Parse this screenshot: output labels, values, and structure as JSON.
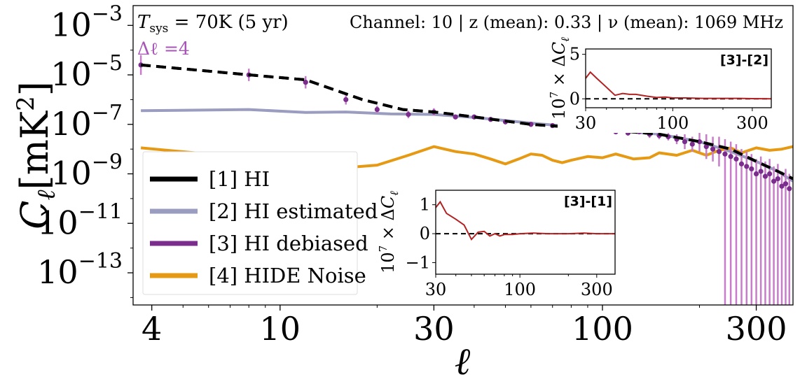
{
  "chart_data": [
    {
      "type": "line",
      "xscale": "log",
      "yscale": "log",
      "xlim": [
        3.5,
        390
      ],
      "ylim_exp": [
        -14.3,
        -2.2
      ],
      "xlabel": "ℓ",
      "ylabel": "C_ℓ [mK²]",
      "ylabel_main": "C",
      "ylabel_sub": "ℓ",
      "ylabel_unit": "[mK",
      "ylabel_pow": "2",
      "ylabel_close": "]",
      "xticks": [
        4,
        10,
        30,
        100,
        300
      ],
      "xtick_labels": [
        "4",
        "10",
        "30",
        "100",
        "300"
      ],
      "yticks_exp": [
        -3,
        -5,
        -7,
        -9,
        -11,
        -13
      ],
      "ytick_base": "10",
      "ytick_exps": [
        "−3",
        "−5",
        "−7",
        "−9",
        "−11",
        "−13"
      ],
      "annotations": {
        "tsys_main": "T",
        "tsys_sub": "sys",
        "tsys_rest": " = 70K (5 yr)",
        "delta_l": "Δℓ =4",
        "channel": "Channel: 10 | z (mean): 0.33 | ν (mean): 1069 MHz"
      },
      "legend_position": "lower-left",
      "legend": [
        {
          "label": "[1] HI",
          "color": "#000000"
        },
        {
          "label": "[2] HI estimated",
          "color": "#9a9cc0"
        },
        {
          "label": "[3] HI debiased",
          "color": "#7b2d8e"
        },
        {
          "label": "[4] HIDE Noise",
          "color": "#e69a14"
        }
      ],
      "series": [
        {
          "name": "[1] HI",
          "style": "dashed",
          "color": "#000000",
          "x": [
            3.7,
            8,
            12,
            18,
            24,
            30,
            40,
            60,
            100,
            150,
            200,
            250,
            300,
            350,
            390
          ],
          "y_exp": [
            -4.6,
            -5.0,
            -5.2,
            -6.0,
            -6.4,
            -6.5,
            -6.7,
            -7.0,
            -7.2,
            -7.4,
            -7.7,
            -8.0,
            -8.5,
            -8.9,
            -9.2
          ]
        },
        {
          "name": "[2] HI estimated",
          "style": "solid",
          "color": "#9a9cc0",
          "x": [
            3.7,
            8,
            12,
            16,
            22,
            30,
            40,
            60,
            100,
            150,
            200,
            250,
            300,
            350,
            390
          ],
          "y_exp": [
            -6.45,
            -6.4,
            -6.52,
            -6.5,
            -6.58,
            -6.6,
            -6.72,
            -6.95,
            -7.2,
            -7.4,
            -7.7,
            -8.1,
            -8.5,
            -8.9,
            -9.3
          ]
        },
        {
          "name": "[4] HIDE Noise",
          "style": "solid",
          "color": "#e69a14",
          "x": [
            3.7,
            8,
            12,
            16,
            20,
            25,
            30,
            35,
            40,
            45,
            50,
            55,
            60,
            65,
            70,
            75,
            80,
            90,
            100,
            110,
            125,
            140,
            150,
            170,
            190,
            210,
            230,
            250,
            270,
            300,
            330,
            360,
            390
          ],
          "y_exp": [
            -7.95,
            -8.35,
            -8.55,
            -8.75,
            -8.65,
            -8.25,
            -7.9,
            -8.1,
            -8.2,
            -8.4,
            -8.6,
            -8.4,
            -8.2,
            -8.25,
            -8.45,
            -8.55,
            -8.45,
            -8.3,
            -8.35,
            -8.2,
            -8.4,
            -8.35,
            -8.15,
            -8.25,
            -8.05,
            -8.25,
            -8.05,
            -7.95,
            -8.15,
            -7.95,
            -8.05,
            -8.0,
            -7.9
          ]
        }
      ],
      "points_series": {
        "name": "[3] HI debiased",
        "color": "#7b2d8e",
        "errorbar_color": "#c77dc9",
        "x": [
          3.7,
          8,
          12,
          16,
          20,
          25,
          30,
          35,
          40,
          45,
          50,
          60,
          70,
          80,
          90,
          100,
          110,
          120,
          130,
          140,
          150,
          160,
          170,
          180,
          190,
          200,
          210,
          220,
          230,
          240,
          250,
          260,
          270,
          280,
          290,
          300,
          310,
          320,
          330,
          340,
          350,
          360,
          370,
          380
        ],
        "y_exp": [
          -4.6,
          -5.0,
          -5.3,
          -6.0,
          -6.4,
          -6.6,
          -6.5,
          -6.7,
          -6.7,
          -6.8,
          -6.9,
          -7.0,
          -7.05,
          -7.1,
          -7.15,
          -7.2,
          -7.3,
          -7.35,
          -7.3,
          -7.4,
          -7.45,
          -7.5,
          -7.6,
          -7.7,
          -7.8,
          -7.7,
          -7.9,
          -8.0,
          -8.1,
          -8.2,
          -8.3,
          -8.4,
          -8.6,
          -8.7,
          -8.8,
          -9.0,
          -8.9,
          -9.1,
          -9.0,
          -9.3,
          -9.2,
          -9.5,
          -9.4,
          -9.6
        ],
        "err_exp": [
          0.4,
          0.25,
          0.25,
          0.2,
          0.15,
          0.15,
          0.15,
          0.1,
          0.1,
          0.1,
          0.1,
          0.1,
          0.1,
          0.1,
          0.1,
          0.1,
          0.1,
          0.1,
          0.1,
          0.15,
          0.15,
          0.15,
          0.2,
          0.3,
          0.3,
          0.4,
          0.5,
          0.5,
          0.6,
          6,
          6,
          6,
          6,
          6,
          6,
          6,
          6,
          6,
          6,
          6,
          6,
          6,
          6,
          6
        ]
      }
    },
    {
      "type": "line",
      "title": "[3]-[2]",
      "xscale": "log",
      "xlim": [
        30,
        390
      ],
      "ylim": [
        -1.0,
        5.6
      ],
      "xticks": [
        30,
        100,
        300
      ],
      "xtick_labels": [
        "30",
        "100",
        "300"
      ],
      "yticks": [
        0,
        5
      ],
      "ytick_labels": [
        "0",
        "5"
      ],
      "ylabel": "10⁷ × ΔC_ℓ",
      "ylabel_base": "10",
      "ylabel_pow": "7",
      "ylabel_mid": " × Δ",
      "ylabel_main": "C",
      "ylabel_sub": "ℓ",
      "zero_line": "dashed",
      "series": [
        {
          "name": "[3]-[2]",
          "color": "#b22222",
          "x": [
            30,
            32,
            35,
            40,
            45,
            50,
            55,
            60,
            70,
            80,
            90,
            100,
            120,
            150,
            200,
            250,
            300,
            390
          ],
          "y": [
            2.3,
            3.0,
            2.3,
            1.3,
            0.4,
            0.6,
            0.5,
            0.5,
            0.3,
            0.15,
            0.2,
            0.1,
            0.1,
            0.05,
            0.05,
            0.05,
            0.02,
            0.0
          ]
        }
      ]
    },
    {
      "type": "line",
      "title": "[3]-[1]",
      "xscale": "log",
      "xlim": [
        30,
        390
      ],
      "ylim": [
        -1.4,
        1.5
      ],
      "xticks": [
        30,
        100,
        300
      ],
      "xtick_labels": [
        "30",
        "100",
        "300"
      ],
      "yticks": [
        -1,
        0,
        1
      ],
      "ytick_labels": [
        "−1",
        "0",
        "1"
      ],
      "ylabel": "10⁷ × ΔC_ℓ",
      "ylabel_base": "10",
      "ylabel_pow": "7",
      "ylabel_mid": " × Δ",
      "ylabel_main": "C",
      "ylabel_sub": "ℓ",
      "zero_line": "dashed",
      "series": [
        {
          "name": "[3]-[1]",
          "color": "#b22222",
          "x": [
            30,
            32,
            35,
            40,
            45,
            50,
            55,
            60,
            65,
            70,
            75,
            80,
            90,
            100,
            120,
            150,
            200,
            250,
            300,
            390
          ],
          "y": [
            0.9,
            1.1,
            0.7,
            0.5,
            0.3,
            -0.2,
            0.05,
            0.08,
            -0.08,
            0.0,
            -0.08,
            -0.03,
            -0.03,
            0.0,
            0.02,
            0.0,
            0.0,
            0.02,
            0.0,
            0.0
          ]
        }
      ]
    }
  ]
}
